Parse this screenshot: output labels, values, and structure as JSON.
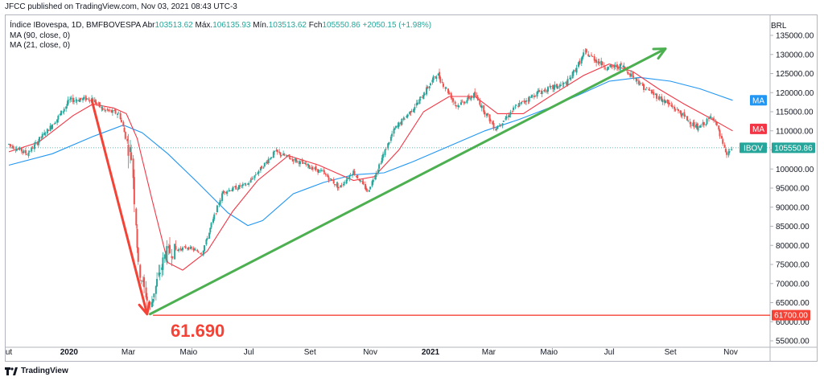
{
  "header": {
    "publisher": "JFCC published on TradingView.com, Nov 03, 2021 08:43 UTC-3"
  },
  "legend": {
    "symbol": "Índice IBovespa, 1D, BMFBOVESPA",
    "open_label": "Abr",
    "open": "103513.62",
    "high_label": "Máx.",
    "high": "106135.93",
    "low_label": "Mín.",
    "low": "103513.62",
    "close_label": "Fch",
    "close": "105550.86",
    "change": "+2050.15 (+1.98%)",
    "ma90": "MA (90, close, 0)",
    "ma21": "MA (21, close, 0)"
  },
  "footer": {
    "brand": "TradingView"
  },
  "colors": {
    "up": "#26a69a",
    "down": "#ef5350",
    "ma21": "#f23645",
    "ma90": "#2196f3",
    "arrow_up": "#4caf50",
    "arrow_down": "#f44336",
    "support": "#f44336"
  },
  "chart_data": {
    "type": "candlestick",
    "currency": "BRL",
    "ylim": [
      55000,
      137500
    ],
    "y_ticks": [
      "135000.00",
      "130000.00",
      "125000.00",
      "120000.00",
      "115000.00",
      "110000.00",
      "105000.00",
      "100000.00",
      "95000.00",
      "90000.00",
      "85000.00",
      "80000.00",
      "75000.00",
      "70000.00",
      "65000.00",
      "60000.00",
      "55000.00"
    ],
    "x_ticks": [
      {
        "date": "2019-11-01",
        "label": "ut"
      },
      {
        "date": "2020-01-01",
        "label": "2020"
      },
      {
        "date": "2020-03-01",
        "label": "Mar"
      },
      {
        "date": "2020-05-01",
        "label": "Maio"
      },
      {
        "date": "2020-07-01",
        "label": "Jul"
      },
      {
        "date": "2020-09-01",
        "label": "Set"
      },
      {
        "date": "2020-11-01",
        "label": "Nov"
      },
      {
        "date": "2021-01-01",
        "label": "2021"
      },
      {
        "date": "2021-03-01",
        "label": "Mar"
      },
      {
        "date": "2021-05-01",
        "label": "Maio"
      },
      {
        "date": "2021-07-01",
        "label": "Jul"
      },
      {
        "date": "2021-09-01",
        "label": "Set"
      },
      {
        "date": "2021-11-01",
        "label": "Nov"
      }
    ],
    "price_path": [
      {
        "date": "2019-11-01",
        "value": 106500
      },
      {
        "date": "2019-11-20",
        "value": 104000
      },
      {
        "date": "2019-12-20",
        "value": 113000
      },
      {
        "date": "2020-01-02",
        "value": 118000
      },
      {
        "date": "2020-01-24",
        "value": 118500
      },
      {
        "date": "2020-02-05",
        "value": 115500
      },
      {
        "date": "2020-02-21",
        "value": 114500
      },
      {
        "date": "2020-03-05",
        "value": 103000
      },
      {
        "date": "2020-03-12",
        "value": 74000
      },
      {
        "date": "2020-03-23",
        "value": 63500
      },
      {
        "date": "2020-04-08",
        "value": 78000
      },
      {
        "date": "2020-04-30",
        "value": 79500
      },
      {
        "date": "2020-05-15",
        "value": 78000
      },
      {
        "date": "2020-06-05",
        "value": 94000
      },
      {
        "date": "2020-06-30",
        "value": 96000
      },
      {
        "date": "2020-07-28",
        "value": 104500
      },
      {
        "date": "2020-08-20",
        "value": 102000
      },
      {
        "date": "2020-09-15",
        "value": 99000
      },
      {
        "date": "2020-10-01",
        "value": 95000
      },
      {
        "date": "2020-10-15",
        "value": 99500
      },
      {
        "date": "2020-10-30",
        "value": 94000
      },
      {
        "date": "2020-11-25",
        "value": 110000
      },
      {
        "date": "2020-12-20",
        "value": 117500
      },
      {
        "date": "2021-01-08",
        "value": 125000
      },
      {
        "date": "2021-01-28",
        "value": 116500
      },
      {
        "date": "2021-02-15",
        "value": 119500
      },
      {
        "date": "2021-03-08",
        "value": 110500
      },
      {
        "date": "2021-03-30",
        "value": 116500
      },
      {
        "date": "2021-04-20",
        "value": 120000
      },
      {
        "date": "2021-05-20",
        "value": 122500
      },
      {
        "date": "2021-06-07",
        "value": 130500
      },
      {
        "date": "2021-06-30",
        "value": 126500
      },
      {
        "date": "2021-07-15",
        "value": 127000
      },
      {
        "date": "2021-08-05",
        "value": 121500
      },
      {
        "date": "2021-08-25",
        "value": 118000
      },
      {
        "date": "2021-09-10",
        "value": 115000
      },
      {
        "date": "2021-09-29",
        "value": 110500
      },
      {
        "date": "2021-10-15",
        "value": 114000
      },
      {
        "date": "2021-10-28",
        "value": 103500
      },
      {
        "date": "2021-11-03",
        "value": 105550.86
      }
    ],
    "ma21_path": [
      {
        "date": "2019-11-01",
        "value": 104500
      },
      {
        "date": "2019-12-01",
        "value": 107000
      },
      {
        "date": "2020-01-05",
        "value": 114000
      },
      {
        "date": "2020-01-25",
        "value": 117000
      },
      {
        "date": "2020-02-15",
        "value": 116000
      },
      {
        "date": "2020-02-28",
        "value": 114500
      },
      {
        "date": "2020-03-10",
        "value": 108000
      },
      {
        "date": "2020-03-25",
        "value": 92000
      },
      {
        "date": "2020-04-10",
        "value": 75500
      },
      {
        "date": "2020-04-25",
        "value": 73500
      },
      {
        "date": "2020-05-20",
        "value": 78500
      },
      {
        "date": "2020-06-15",
        "value": 89000
      },
      {
        "date": "2020-07-10",
        "value": 97000
      },
      {
        "date": "2020-08-10",
        "value": 103500
      },
      {
        "date": "2020-09-10",
        "value": 101000
      },
      {
        "date": "2020-10-15",
        "value": 97000
      },
      {
        "date": "2020-11-05",
        "value": 98000
      },
      {
        "date": "2020-11-30",
        "value": 105000
      },
      {
        "date": "2020-12-25",
        "value": 115000
      },
      {
        "date": "2021-01-20",
        "value": 119000
      },
      {
        "date": "2021-02-15",
        "value": 119000
      },
      {
        "date": "2021-03-10",
        "value": 114500
      },
      {
        "date": "2021-04-05",
        "value": 114500
      },
      {
        "date": "2021-05-05",
        "value": 119500
      },
      {
        "date": "2021-06-05",
        "value": 124500
      },
      {
        "date": "2021-07-01",
        "value": 127500
      },
      {
        "date": "2021-07-25",
        "value": 125500
      },
      {
        "date": "2021-08-20",
        "value": 121000
      },
      {
        "date": "2021-09-15",
        "value": 117000
      },
      {
        "date": "2021-10-10",
        "value": 113500
      },
      {
        "date": "2021-11-03",
        "value": 110000
      }
    ],
    "ma90_path": [
      {
        "date": "2019-11-01",
        "value": 101000
      },
      {
        "date": "2019-12-15",
        "value": 104000
      },
      {
        "date": "2020-01-25",
        "value": 108500
      },
      {
        "date": "2020-02-25",
        "value": 111500
      },
      {
        "date": "2020-03-15",
        "value": 109500
      },
      {
        "date": "2020-04-10",
        "value": 104000
      },
      {
        "date": "2020-05-10",
        "value": 96500
      },
      {
        "date": "2020-06-10",
        "value": 88500
      },
      {
        "date": "2020-06-30",
        "value": 85200
      },
      {
        "date": "2020-07-15",
        "value": 86500
      },
      {
        "date": "2020-08-15",
        "value": 93500
      },
      {
        "date": "2020-09-15",
        "value": 96500
      },
      {
        "date": "2020-10-15",
        "value": 98500
      },
      {
        "date": "2020-11-15",
        "value": 99000
      },
      {
        "date": "2020-12-15",
        "value": 102000
      },
      {
        "date": "2021-01-20",
        "value": 106000
      },
      {
        "date": "2021-02-25",
        "value": 110000
      },
      {
        "date": "2021-04-01",
        "value": 113000
      },
      {
        "date": "2021-05-01",
        "value": 116000
      },
      {
        "date": "2021-06-01",
        "value": 119500
      },
      {
        "date": "2021-07-01",
        "value": 123000
      },
      {
        "date": "2021-08-01",
        "value": 124000
      },
      {
        "date": "2021-09-01",
        "value": 123000
      },
      {
        "date": "2021-10-01",
        "value": 121000
      },
      {
        "date": "2021-11-03",
        "value": 118000
      }
    ],
    "trend_up": {
      "from": {
        "date": "2020-03-23",
        "value": 62000
      },
      "to": {
        "date": "2021-08-27",
        "value": 131500
      }
    },
    "trend_down": {
      "from": {
        "date": "2020-01-24",
        "value": 118000
      },
      "to": {
        "date": "2020-03-20",
        "value": 62000
      }
    },
    "support_level": {
      "value": 61700,
      "label": "61700.00"
    },
    "annotation": "61.690",
    "price_labels": [
      {
        "text": "MA",
        "value": 118000,
        "series": "ma90"
      },
      {
        "text": "MA",
        "value": 110500,
        "series": "ma21"
      },
      {
        "text": "IBOV",
        "value": 105550.86,
        "series": "close"
      },
      {
        "text": "105550.86",
        "value": 105550.86,
        "series": "close"
      }
    ]
  }
}
